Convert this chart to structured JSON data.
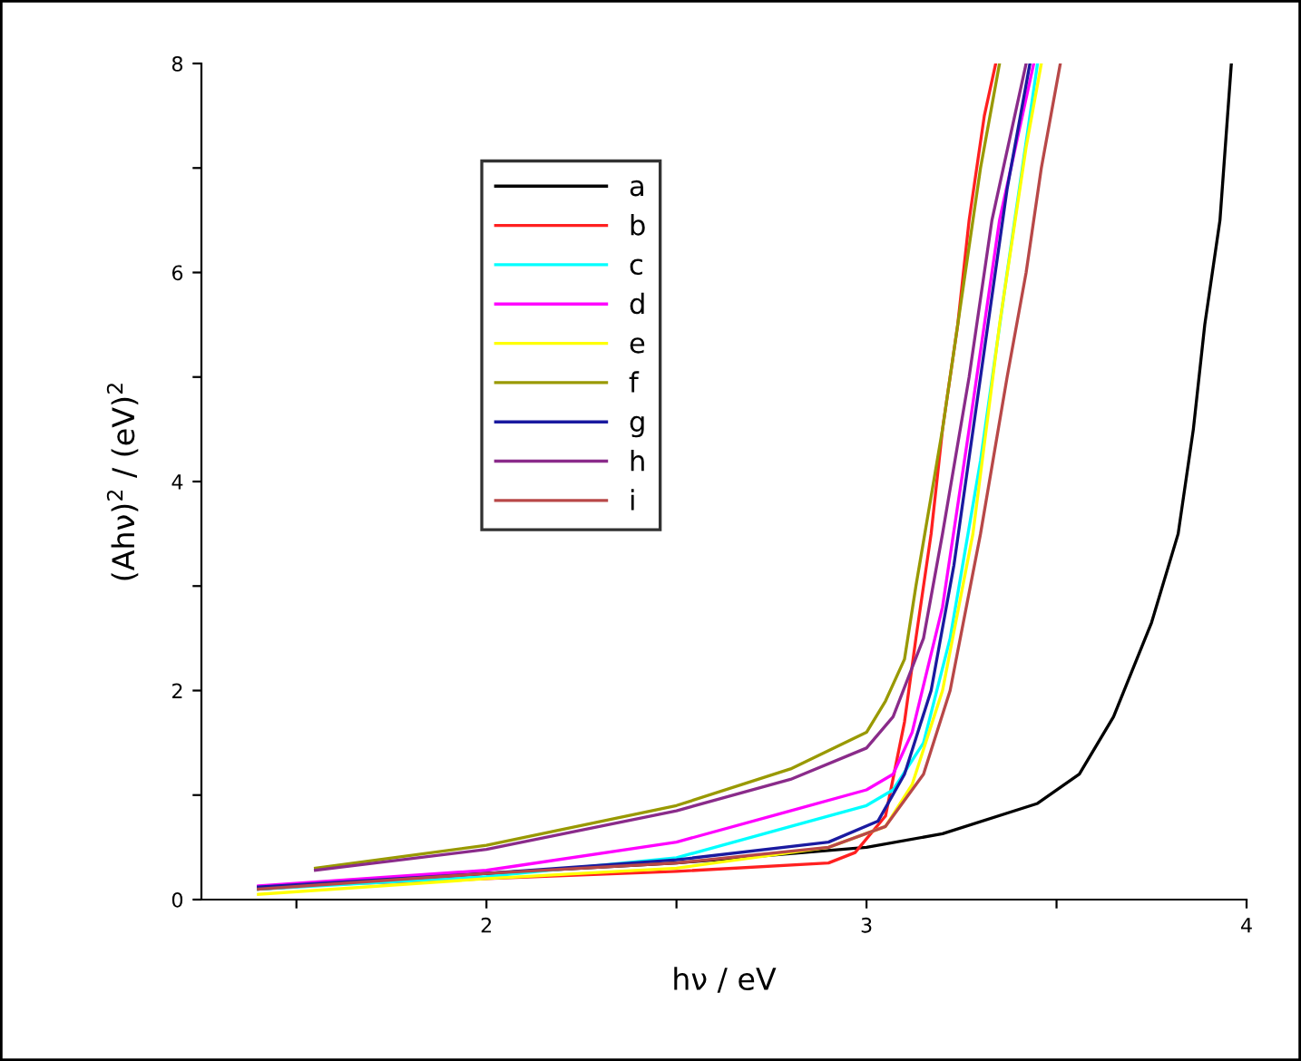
{
  "chart_data": {
    "type": "line",
    "xlabel": "hν / eV",
    "ylabel": "(Ahν)$^{2}$ / (eV)$^{2}$",
    "xlim": [
      1.25,
      4
    ],
    "ylim": [
      0,
      8
    ],
    "xticks": [
      {
        "value": 1.5,
        "label": null
      },
      2,
      {
        "value": 2.5,
        "label": null
      },
      3,
      {
        "value": 3.5,
        "label": null
      },
      4
    ],
    "yticks": [
      0,
      {
        "value": 1,
        "label": null
      },
      2,
      {
        "value": 3,
        "label": null
      },
      4,
      {
        "value": 5,
        "label": null
      },
      6,
      {
        "value": 7,
        "label": null
      },
      8
    ],
    "grid": false,
    "legend": "top left",
    "marker": "none",
    "line_style": "solid",
    "series": [
      {
        "name": "a",
        "color": "#000000",
        "x": [
          1.4,
          2.0,
          2.5,
          3.0,
          3.2,
          3.45,
          3.56,
          3.65,
          3.75,
          3.82,
          3.86,
          3.89,
          3.93,
          3.96
        ],
        "values": [
          0.1,
          0.25,
          0.35,
          0.5,
          0.63,
          0.92,
          1.2,
          1.75,
          2.65,
          3.5,
          4.5,
          5.5,
          6.5,
          8
        ]
      },
      {
        "name": "b",
        "color": "#ff2020",
        "x": [
          1.4,
          2.0,
          2.5,
          2.9,
          2.97,
          3.05,
          3.1,
          3.13,
          3.17,
          3.2,
          3.24,
          3.27,
          3.31,
          3.34
        ],
        "values": [
          0.12,
          0.2,
          0.27,
          0.35,
          0.45,
          0.8,
          1.7,
          2.5,
          3.5,
          4.5,
          5.5,
          6.5,
          7.5,
          8
        ]
      },
      {
        "name": "c",
        "color": "#00ffff",
        "x": [
          1.4,
          2.0,
          2.5,
          2.8,
          3.0,
          3.07,
          3.15,
          3.22,
          3.3,
          3.37,
          3.45
        ],
        "values": [
          0.1,
          0.22,
          0.4,
          0.7,
          0.9,
          1.05,
          1.5,
          2.5,
          4.2,
          6,
          8
        ]
      },
      {
        "name": "d",
        "color": "#ff00ff",
        "x": [
          1.4,
          2.0,
          2.5,
          2.8,
          3.0,
          3.07,
          3.12,
          3.2,
          3.27,
          3.35,
          3.44
        ],
        "values": [
          0.13,
          0.28,
          0.55,
          0.85,
          1.05,
          1.2,
          1.6,
          2.8,
          4.5,
          6.5,
          8
        ]
      },
      {
        "name": "e",
        "color": "#ffff00",
        "x": [
          1.4,
          2.0,
          2.5,
          2.9,
          3.05,
          3.12,
          3.2,
          3.28,
          3.35,
          3.42,
          3.46
        ],
        "values": [
          0.05,
          0.2,
          0.3,
          0.5,
          0.7,
          1.1,
          2,
          3.5,
          5.5,
          7.2,
          8
        ]
      },
      {
        "name": "f",
        "color": "#999900",
        "x": [
          1.55,
          2.0,
          2.5,
          2.8,
          3.0,
          3.05,
          3.1,
          3.13,
          3.2,
          3.26,
          3.3,
          3.35
        ],
        "values": [
          0.3,
          0.52,
          0.9,
          1.25,
          1.6,
          1.9,
          2.3,
          3,
          4.5,
          6,
          7,
          8
        ]
      },
      {
        "name": "g",
        "color": "#1a1aa0",
        "x": [
          1.4,
          2.0,
          2.5,
          2.9,
          3.03,
          3.1,
          3.17,
          3.23,
          3.3,
          3.37,
          3.43
        ],
        "values": [
          0.12,
          0.25,
          0.38,
          0.55,
          0.75,
          1.2,
          2,
          3.2,
          5,
          6.8,
          8
        ]
      },
      {
        "name": "h",
        "color": "#8a2b8a",
        "x": [
          1.55,
          2.0,
          2.5,
          2.8,
          3.0,
          3.07,
          3.15,
          3.2,
          3.27,
          3.33,
          3.42
        ],
        "values": [
          0.28,
          0.48,
          0.85,
          1.15,
          1.45,
          1.75,
          2.5,
          3.5,
          5,
          6.5,
          8
        ]
      },
      {
        "name": "i",
        "color": "#b84848",
        "x": [
          1.4,
          2.0,
          2.5,
          2.9,
          3.05,
          3.15,
          3.22,
          3.3,
          3.37,
          3.42,
          3.46,
          3.51
        ],
        "values": [
          0.1,
          0.25,
          0.35,
          0.5,
          0.7,
          1.2,
          2,
          3.5,
          5,
          6,
          7,
          8
        ]
      }
    ]
  }
}
